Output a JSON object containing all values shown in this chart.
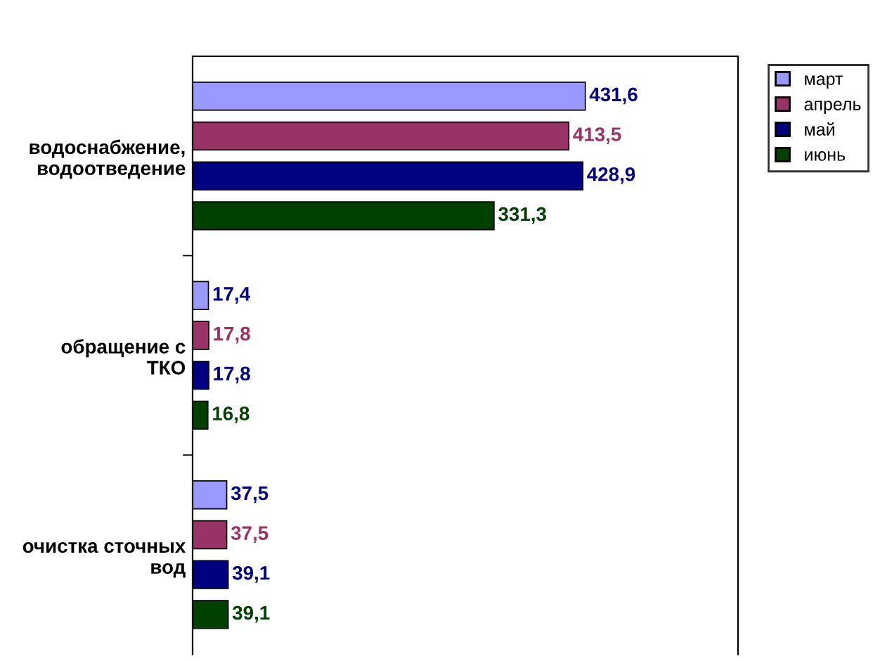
{
  "chart_data": {
    "type": "bar",
    "orientation": "horizontal",
    "categories": [
      "водоснабжение, водоотведение",
      "обращение с ТКО",
      "очистка сточных вод"
    ],
    "series": [
      {
        "name": "март",
        "color": "#9999ff",
        "values": [
          431.6,
          17.4,
          37.5
        ],
        "value_labels": [
          "431,6",
          "17,4",
          "37,5"
        ]
      },
      {
        "name": "апрель",
        "color": "#993366",
        "values": [
          413.5,
          17.8,
          37.5
        ],
        "value_labels": [
          "413,5",
          "17,8",
          "37,5"
        ]
      },
      {
        "name": "май",
        "color": "#000080",
        "values": [
          428.9,
          17.8,
          39.1
        ],
        "value_labels": [
          "428,9",
          "17,8",
          "39,1"
        ]
      },
      {
        "name": "июнь",
        "color": "#004000",
        "values": [
          331.3,
          16.8,
          39.1
        ],
        "value_labels": [
          "331,3",
          "16,8",
          "39,1"
        ]
      }
    ],
    "tick_labels": "y",
    "legend": "top right",
    "grid": false
  }
}
